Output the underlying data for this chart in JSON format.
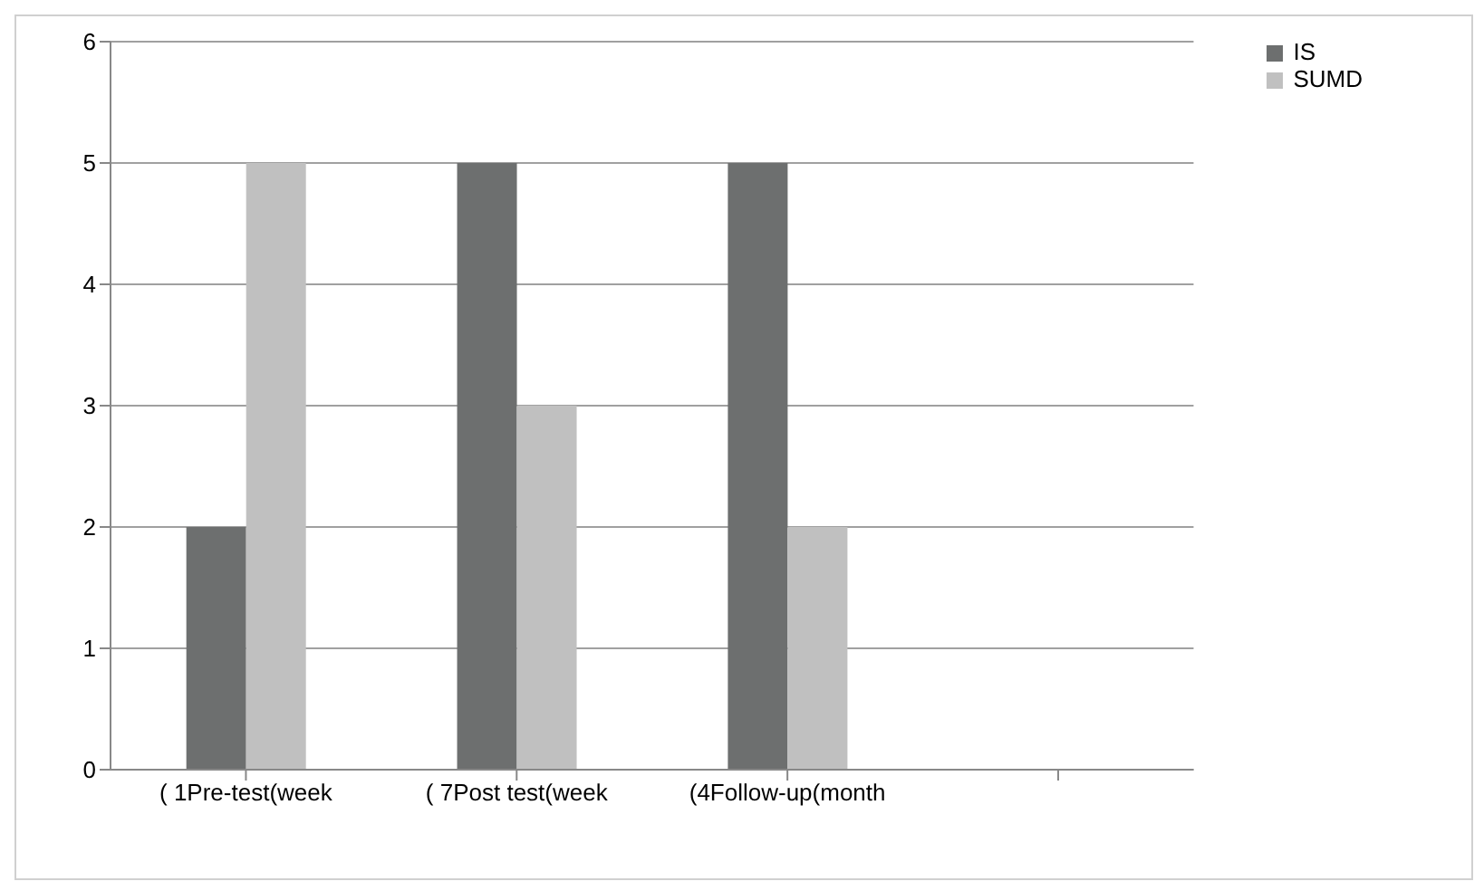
{
  "chart_data": {
    "type": "bar",
    "categories": [
      "( 1Pre-test(week",
      "( 7Post test(week",
      "(4Follow-up(month",
      null
    ],
    "series": [
      {
        "name": "IS",
        "color": "#6d6f6f",
        "values": [
          2,
          5,
          5,
          null
        ]
      },
      {
        "name": "SUMD",
        "color": "#c0c0c0",
        "values": [
          5,
          3,
          2,
          null
        ]
      }
    ],
    "ylim": [
      0,
      6
    ],
    "yticks": [
      0,
      1,
      2,
      3,
      4,
      5,
      6
    ],
    "grid": "y",
    "legend": "top right"
  }
}
